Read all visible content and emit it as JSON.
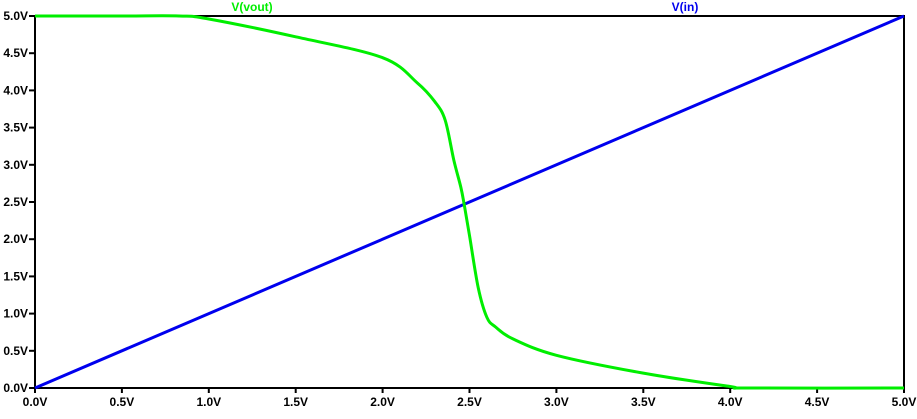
{
  "chart_data": {
    "type": "line",
    "xlim": [
      0,
      5
    ],
    "ylim": [
      0,
      5
    ],
    "x_ticks": [
      "0.0V",
      "0.5V",
      "1.0V",
      "1.5V",
      "2.0V",
      "2.5V",
      "3.0V",
      "3.5V",
      "4.0V",
      "4.5V",
      "5.0V"
    ],
    "y_ticks": [
      "0.0V",
      "0.5V",
      "1.0V",
      "1.5V",
      "2.0V",
      "2.5V",
      "3.0V",
      "3.5V",
      "4.0V",
      "4.5V",
      "5.0V"
    ],
    "grid": false,
    "series": [
      {
        "name": "V(vout)",
        "color": "#00ee00",
        "x": [
          0,
          0.5,
          0.83,
          1.0,
          1.5,
          2.0,
          2.2,
          2.3,
          2.36,
          2.41,
          2.45,
          2.47,
          2.5,
          2.55,
          2.6,
          2.65,
          2.75,
          3.0,
          3.5,
          4.0,
          4.1,
          5.0
        ],
        "y": [
          5.0,
          5.0,
          5.0,
          4.96,
          4.72,
          4.44,
          4.1,
          3.85,
          3.6,
          3.06,
          2.7,
          2.46,
          2.05,
          1.35,
          0.95,
          0.82,
          0.66,
          0.44,
          0.2,
          0.02,
          0.0,
          0.0
        ]
      },
      {
        "name": "V(in)",
        "color": "#0000ee",
        "x": [
          0,
          5
        ],
        "y": [
          0,
          5
        ]
      }
    ]
  }
}
